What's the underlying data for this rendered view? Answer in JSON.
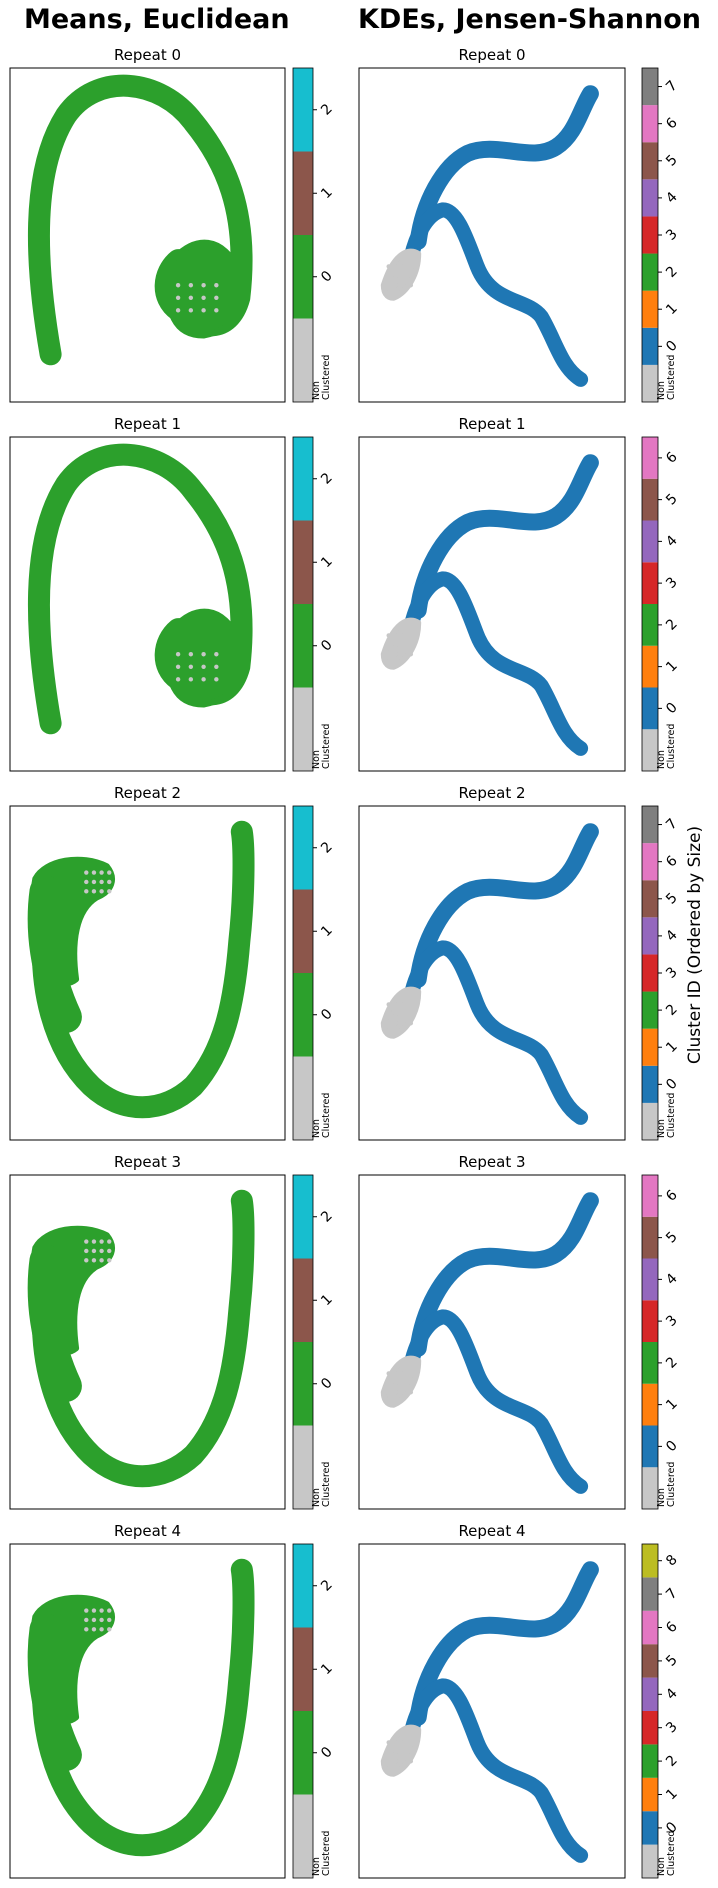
{
  "column_titles": [
    "Means, Euclidean",
    "KDEs, Jensen-Shannon"
  ],
  "shared_ylabel": "Cluster ID (Ordered by Size)",
  "colors": {
    "non_clustered": "#c7c7c7",
    "palette": [
      "#1f77b4",
      "#ff7f0e",
      "#2ca02c",
      "#d62728",
      "#9467bd",
      "#8c564b",
      "#e377c2",
      "#7f7f7f",
      "#bcbd22",
      "#17becf"
    ],
    "means_palette": [
      "#2ca02c",
      "#8c564b",
      "#17becf"
    ],
    "means_point": "#2ca02c",
    "kde_point": "#1f77b4"
  },
  "chart_data": [
    {
      "type": "scatter",
      "column": "Means, Euclidean",
      "title": "Repeat 0",
      "colorbar_labels": [
        "Non\nClustered",
        "0",
        "1",
        "2"
      ],
      "shape": "arch",
      "points_color": "green"
    },
    {
      "type": "scatter",
      "column": "KDEs, Jensen-Shannon",
      "title": "Repeat 0",
      "colorbar_labels": [
        "Non\nClustered",
        "0",
        "1",
        "2",
        "3",
        "4",
        "5",
        "6",
        "7"
      ],
      "shape": "double-s",
      "points_color": "blue"
    },
    {
      "type": "scatter",
      "column": "Means, Euclidean",
      "title": "Repeat 1",
      "colorbar_labels": [
        "Non\nClustered",
        "0",
        "1",
        "2"
      ],
      "shape": "arch",
      "points_color": "green"
    },
    {
      "type": "scatter",
      "column": "KDEs, Jensen-Shannon",
      "title": "Repeat 1",
      "colorbar_labels": [
        "Non\nClustered",
        "0",
        "1",
        "2",
        "3",
        "4",
        "5",
        "6"
      ],
      "shape": "double-s",
      "points_color": "blue"
    },
    {
      "type": "scatter",
      "column": "Means, Euclidean",
      "title": "Repeat 2",
      "colorbar_labels": [
        "Non\nClustered",
        "0",
        "1",
        "2"
      ],
      "shape": "u",
      "points_color": "green"
    },
    {
      "type": "scatter",
      "column": "KDEs, Jensen-Shannon",
      "title": "Repeat 2",
      "colorbar_labels": [
        "Non\nClustered",
        "0",
        "1",
        "2",
        "3",
        "4",
        "5",
        "6",
        "7"
      ],
      "shape": "double-s",
      "points_color": "blue"
    },
    {
      "type": "scatter",
      "column": "Means, Euclidean",
      "title": "Repeat 3",
      "colorbar_labels": [
        "Non\nClustered",
        "0",
        "1",
        "2"
      ],
      "shape": "u",
      "points_color": "green"
    },
    {
      "type": "scatter",
      "column": "KDEs, Jensen-Shannon",
      "title": "Repeat 3",
      "colorbar_labels": [
        "Non\nClustered",
        "0",
        "1",
        "2",
        "3",
        "4",
        "5",
        "6"
      ],
      "shape": "double-s",
      "points_color": "blue"
    },
    {
      "type": "scatter",
      "column": "Means, Euclidean",
      "title": "Repeat 4",
      "colorbar_labels": [
        "Non\nClustered",
        "0",
        "1",
        "2"
      ],
      "shape": "u",
      "points_color": "green"
    },
    {
      "type": "scatter",
      "column": "KDEs, Jensen-Shannon",
      "title": "Repeat 4",
      "colorbar_labels": [
        "Non\nClustered",
        "0",
        "1",
        "2",
        "3",
        "4",
        "5",
        "6",
        "7",
        "8"
      ],
      "shape": "double-s",
      "points_color": "blue"
    }
  ]
}
